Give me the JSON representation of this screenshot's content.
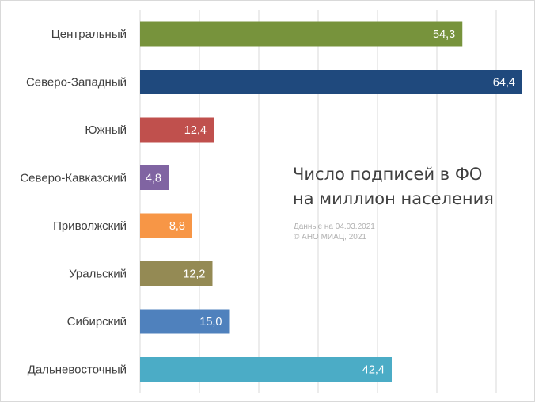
{
  "chart_data": {
    "type": "bar",
    "orientation": "horizontal",
    "title": "Число подписей в ФО\nна миллион населения",
    "notes": [
      "Данные на 04.03.2021",
      "© АНО МИАЦ, 2021"
    ],
    "categories": [
      "Центральный",
      "Северо-Западный",
      "Южный",
      "Северо-Кавказский",
      "Приволжский",
      "Уральский",
      "Сибирский",
      "Дальневосточный"
    ],
    "values": [
      54.3,
      64.4,
      12.4,
      4.8,
      8.8,
      12.2,
      15.0,
      42.4
    ],
    "value_labels": [
      "54,3",
      "64,4",
      "12,4",
      "4,8",
      "8,8",
      "12,2",
      "15,0",
      "42,4"
    ],
    "colors": [
      "#77933c",
      "#1f497d",
      "#c0504d",
      "#8064a2",
      "#f79646",
      "#948a54",
      "#4f81bd",
      "#4bacc6"
    ],
    "xlim": [
      0,
      65
    ],
    "x_gridlines": [
      0,
      10,
      20,
      30,
      40,
      50,
      60
    ],
    "grid": true,
    "legend": "none"
  }
}
